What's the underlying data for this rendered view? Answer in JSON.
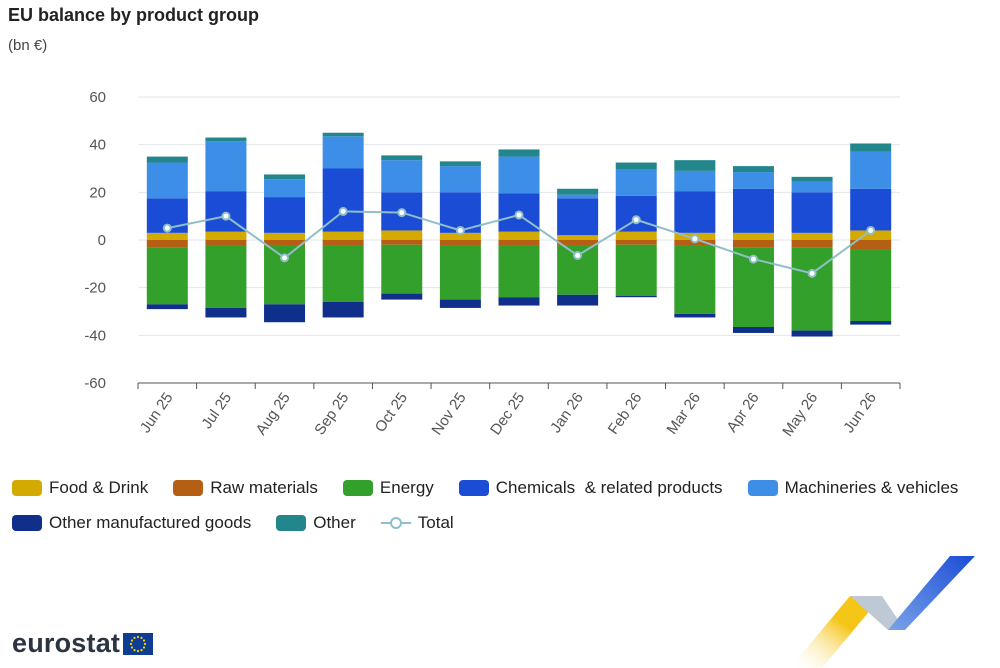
{
  "chart_data": {
    "type": "bar",
    "title": "EU balance by product group",
    "subtitle": "(bn €)",
    "categories": [
      "Jun 25",
      "Jul 25",
      "Aug 25",
      "Sep 25",
      "Oct 25",
      "Nov 25",
      "Dec 25",
      "Jan 26",
      "Feb 26",
      "Mar 26",
      "Apr 26",
      "May 26",
      "Jun 26"
    ],
    "ylim": [
      -60,
      60
    ],
    "yticks": [
      60,
      40,
      20,
      0,
      -20,
      -40,
      -60
    ],
    "grid": true,
    "legend_position": "bottom",
    "series": [
      {
        "name": "Food & Drink",
        "type": "bar",
        "color": "#d4a900",
        "values": [
          3,
          3.5,
          3,
          3.5,
          4,
          3,
          3.5,
          2,
          3.5,
          3,
          3,
          3,
          4
        ]
      },
      {
        "name": "Raw materials",
        "type": "bar",
        "color": "#b45f14",
        "values": [
          -3,
          -2.5,
          -2.5,
          -2.5,
          -2,
          -2.5,
          -2.5,
          -2.5,
          -2,
          -2.5,
          -3,
          -3,
          -4
        ]
      },
      {
        "name": "Energy",
        "type": "bar",
        "color": "#33a02c",
        "values": [
          -24,
          -26,
          -24.5,
          -23.5,
          -20.5,
          -22.5,
          -21.5,
          -20.5,
          -21.5,
          -28.5,
          -33.5,
          -35,
          -30
        ]
      },
      {
        "name": "Chemicals  & related products",
        "type": "bar",
        "color": "#1b4cd6",
        "values": [
          14.5,
          17,
          15,
          26.5,
          16,
          17,
          16,
          15.5,
          15,
          17.5,
          18.5,
          17,
          17.5
        ]
      },
      {
        "name": "Machineries & vehicles",
        "type": "bar",
        "color": "#3d8ee6",
        "values": [
          15,
          21,
          7.5,
          13.5,
          13.5,
          11,
          15.5,
          1.5,
          11,
          8.5,
          7,
          4.5,
          15.5
        ]
      },
      {
        "name": "Other manufactured goods",
        "type": "bar",
        "color": "#0f2f8a",
        "values": [
          -2,
          -4,
          -7.5,
          -6.5,
          -2.5,
          -3.5,
          -3.5,
          -4.5,
          -0.5,
          -1.5,
          -2.5,
          -2.5,
          -1.5
        ]
      },
      {
        "name": "Other",
        "type": "bar",
        "color": "#22868c",
        "values": [
          2.5,
          1.5,
          2,
          1.5,
          2,
          2,
          3,
          2.5,
          3,
          4.5,
          2.5,
          2,
          3.5
        ]
      },
      {
        "name": "Total",
        "type": "line",
        "color": "#8fbfc9",
        "values": [
          5,
          10,
          -7.5,
          12,
          11.5,
          4,
          10.5,
          -6.5,
          8.5,
          0.5,
          -8,
          -14,
          4
        ]
      }
    ]
  }
}
